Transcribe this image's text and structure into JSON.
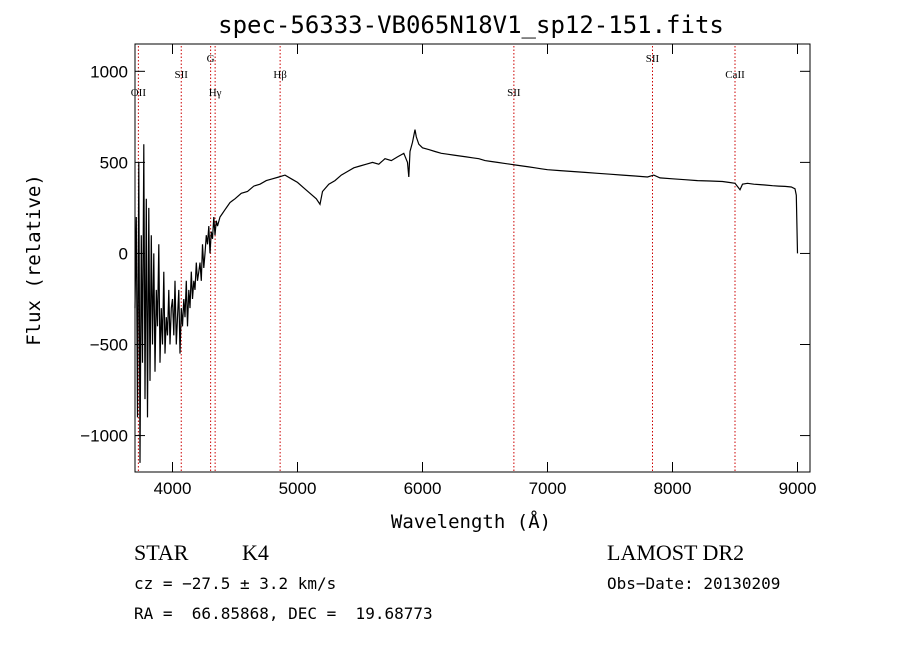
{
  "chart_data": {
    "type": "line",
    "title": "spec-56333-VB065N18V1_sp12-151.fits",
    "xlabel": "Wavelength (Å)",
    "ylabel": "Flux (relative)",
    "xlim": [
      3700,
      9100
    ],
    "ylim": [
      -1200,
      1150
    ],
    "x_ticks": [
      4000,
      5000,
      6000,
      7000,
      8000,
      9000
    ],
    "y_ticks": [
      -1000,
      -500,
      0,
      500,
      1000
    ],
    "x_tick_labels": [
      "4000",
      "5000",
      "6000",
      "7000",
      "8000",
      "9000"
    ],
    "y_tick_labels": [
      "−1000",
      "−500",
      "0",
      "500",
      "1000"
    ],
    "grid": false,
    "line_color": "#000000",
    "marker_color": "#cc0000",
    "series": [
      {
        "x": [
          3700,
          3710,
          3720,
          3730,
          3740,
          3750,
          3760,
          3770,
          3780,
          3790,
          3800,
          3810,
          3820,
          3830,
          3840,
          3850,
          3860,
          3870,
          3880,
          3890,
          3900,
          3910,
          3920,
          3930,
          3940,
          3950,
          3960,
          3970,
          3980,
          3990,
          4000,
          4010,
          4020,
          4030,
          4040,
          4050,
          4060,
          4070,
          4080,
          4090,
          4100,
          4110,
          4120,
          4130,
          4140,
          4150,
          4160,
          4170,
          4180,
          4190,
          4200,
          4210,
          4220,
          4230,
          4240,
          4250,
          4260,
          4270,
          4280,
          4290,
          4300,
          4310,
          4320,
          4330,
          4340,
          4350,
          4360,
          4380,
          4400,
          4420,
          4440,
          4460,
          4480,
          4500,
          4550,
          4600,
          4650,
          4700,
          4750,
          4800,
          4850,
          4900,
          4950,
          5000,
          5050,
          5100,
          5150,
          5180,
          5200,
          5250,
          5300,
          5350,
          5400,
          5450,
          5500,
          5550,
          5600,
          5650,
          5700,
          5750,
          5800,
          5850,
          5880,
          5890,
          5900,
          5920,
          5940,
          5950,
          5970,
          6000,
          6050,
          6100,
          6150,
          6200,
          6250,
          6300,
          6350,
          6400,
          6450,
          6500,
          6550,
          6600,
          6650,
          6700,
          6750,
          6800,
          6850,
          6900,
          6950,
          7000,
          7100,
          7200,
          7300,
          7400,
          7500,
          7600,
          7700,
          7800,
          7850,
          7900,
          8000,
          8100,
          8200,
          8300,
          8400,
          8450,
          8500,
          8540,
          8560,
          8600,
          8650,
          8700,
          8750,
          8800,
          8850,
          8900,
          8950,
          8980,
          8990,
          9000
        ],
        "y": [
          -300,
          200,
          -900,
          500,
          -1150,
          100,
          -600,
          600,
          -800,
          300,
          -900,
          250,
          -700,
          100,
          -500,
          0,
          -650,
          -200,
          -400,
          50,
          -600,
          -300,
          -500,
          -100,
          -550,
          -350,
          -450,
          -200,
          -500,
          -300,
          -250,
          -450,
          -150,
          -500,
          -350,
          -200,
          -550,
          -300,
          -400,
          -250,
          -350,
          -150,
          -400,
          -200,
          -300,
          -100,
          -250,
          -150,
          -200,
          -50,
          -150,
          -100,
          -50,
          -150,
          50,
          -80,
          0,
          100,
          50,
          150,
          0,
          120,
          80,
          200,
          100,
          180,
          150,
          200,
          220,
          240,
          260,
          280,
          290,
          300,
          330,
          340,
          370,
          380,
          400,
          410,
          420,
          430,
          410,
          390,
          360,
          330,
          300,
          270,
          340,
          380,
          400,
          430,
          450,
          470,
          480,
          490,
          500,
          490,
          520,
          510,
          530,
          550,
          500,
          420,
          560,
          610,
          680,
          640,
          600,
          580,
          570,
          560,
          550,
          545,
          540,
          535,
          530,
          525,
          520,
          510,
          505,
          500,
          495,
          490,
          485,
          480,
          475,
          470,
          465,
          460,
          455,
          450,
          445,
          440,
          435,
          430,
          425,
          420,
          430,
          415,
          410,
          405,
          400,
          398,
          395,
          390,
          385,
          350,
          380,
          385,
          380,
          378,
          375,
          372,
          370,
          368,
          365,
          355,
          320,
          0
        ]
      }
    ],
    "line_markers": [
      {
        "label": "OII",
        "x": 3727,
        "row": 3
      },
      {
        "label": "SII",
        "x": 4070,
        "row": 2
      },
      {
        "label": "G",
        "x": 4305,
        "row": 1
      },
      {
        "label": "Hγ",
        "x": 4341,
        "row": 3
      },
      {
        "label": "Hβ",
        "x": 4861,
        "row": 2
      },
      {
        "label": "SII",
        "x": 6731,
        "row": 3
      },
      {
        "label": "SII",
        "x": 7840,
        "row": 1
      },
      {
        "label": "CaII",
        "x": 8500,
        "row": 2
      }
    ]
  },
  "footer": {
    "class_label": "STAR",
    "subclass": "K4",
    "survey": "LAMOST DR2",
    "cz": "cz = −27.5 ± 3.2 km/s",
    "obs_date": "Obs−Date: 20130209",
    "coords": "RA =  66.85868, DEC =  19.68773"
  }
}
